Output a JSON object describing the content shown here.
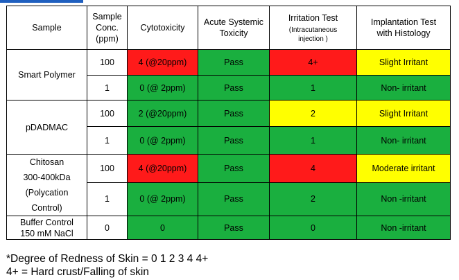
{
  "table": {
    "headers": {
      "sample": "Sample",
      "conc_lines": [
        "Sample",
        "Conc.",
        "(ppm)"
      ],
      "cytotoxicity": "Cytotoxicity",
      "acute_lines": [
        "Acute Systemic",
        "Toxicity"
      ],
      "irritation_main": "Irritation Test",
      "irritation_sub": "(Intracutaneous injection )",
      "implantation_lines": [
        "Implantation Test",
        "with Histology"
      ]
    },
    "groups": [
      {
        "sample_lines": [
          "Smart Polymer"
        ]
      },
      {
        "sample_lines": [
          "pDADMAC"
        ]
      },
      {
        "sample_lines": [
          "Chitosan",
          "300-400kDa",
          "(Polycation",
          "Control)"
        ]
      },
      {
        "sample_lines": [
          "Buffer Control",
          "150 mM NaCl"
        ]
      }
    ],
    "rows": [
      {
        "conc": "100",
        "cytotoxicity": "4 (@20ppm)",
        "acute": "Pass",
        "irritation": "4+",
        "implantation": "Slight Irritant"
      },
      {
        "conc": "1",
        "cytotoxicity": "0 (@ 2ppm)",
        "acute": "Pass",
        "irritation": "1",
        "implantation": "Non- irritant"
      },
      {
        "conc": "100",
        "cytotoxicity": "2 (@20ppm)",
        "acute": "Pass",
        "irritation": "2",
        "implantation": "Slight Irritant"
      },
      {
        "conc": "1",
        "cytotoxicity": "0 (@ 2ppm)",
        "acute": "Pass",
        "irritation": "1",
        "implantation": "Non- irritant"
      },
      {
        "conc": "100",
        "cytotoxicity": "4 (@20ppm)",
        "acute": "Pass",
        "irritation": "4",
        "implantation": "Moderate irritant"
      },
      {
        "conc": "1",
        "cytotoxicity": "0 (@ 2ppm)",
        "acute": "Pass",
        "irritation": "2",
        "implantation": "Non -irritant"
      },
      {
        "conc": "0",
        "cytotoxicity": "0",
        "acute": "Pass",
        "irritation": "0",
        "implantation": "Non -irritant"
      }
    ]
  },
  "colors": {
    "fail": "#ff1a1a",
    "pass": "#1aaf3f",
    "caution": "#ffff00",
    "accent_bar": "#1f5fbf"
  },
  "footnote": {
    "line1": "*Degree of Redness of Skin = 0 1 2 3 4 4+",
    "line2": "4+ = Hard crust/Falling of skin"
  }
}
